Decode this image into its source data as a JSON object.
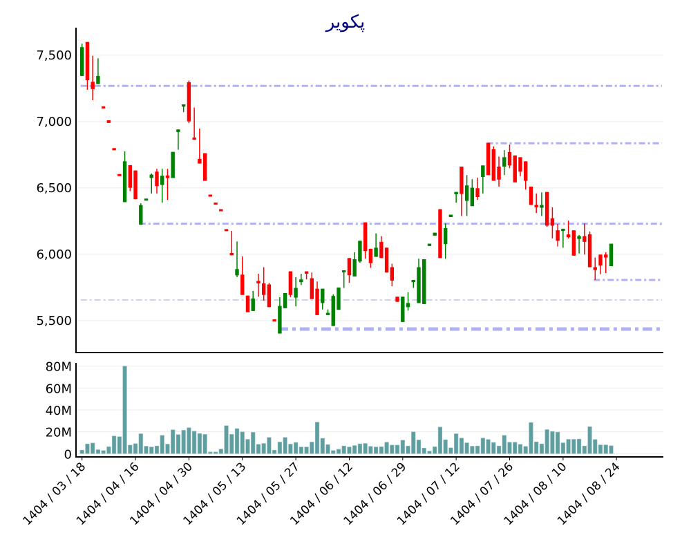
{
  "chart_data": [
    {
      "type": "candlestick",
      "title": "پکویر",
      "ylim": [
        5260,
        7708
      ],
      "y_ticks": [
        5500,
        6000,
        6500,
        7000,
        7500
      ],
      "y_tick_labels": [
        "5,500",
        "6,000",
        "6,500",
        "7,000",
        "7,500"
      ],
      "grid": true,
      "colors": {
        "up": "#008000",
        "down": "#ff0000",
        "level": "#b0b0f5",
        "grid": "#ebebeb",
        "title": "#000080"
      },
      "ohlc": [
        [
          7344,
          7587,
          7344,
          7561
        ],
        [
          7600,
          7600,
          7240,
          7312
        ],
        [
          7300,
          7496,
          7161,
          7245
        ],
        [
          7283,
          7477,
          7283,
          7344
        ],
        [
          7115,
          7115,
          7100,
          7100
        ],
        [
          7010,
          7010,
          6990,
          6990
        ],
        [
          6800,
          6800,
          6785,
          6785
        ],
        [
          6605,
          6605,
          6590,
          6590
        ],
        [
          6393,
          6776,
          6393,
          6701
        ],
        [
          6672,
          6672,
          6476,
          6502
        ],
        [
          6632,
          6632,
          6415,
          6415
        ],
        [
          6224,
          6384,
          6224,
          6371
        ],
        [
          6405,
          6420,
          6405,
          6420
        ],
        [
          6575,
          6609,
          6458,
          6601
        ],
        [
          6623,
          6644,
          6458,
          6514
        ],
        [
          6523,
          6644,
          6389,
          6592
        ],
        [
          6594,
          6644,
          6410,
          6575
        ],
        [
          6575,
          6772,
          6575,
          6772
        ],
        [
          6922,
          6941,
          6788,
          6941
        ],
        [
          7113,
          7130,
          7071,
          7130
        ],
        [
          7297,
          7309,
          6988,
          7002
        ],
        [
          6880,
          7106,
          6863,
          6863
        ],
        [
          6719,
          6948,
          6684,
          6684
        ],
        [
          6762,
          6762,
          6554,
          6554
        ],
        [
          6450,
          6450,
          6440,
          6440
        ],
        [
          6390,
          6390,
          6380,
          6380
        ],
        [
          6340,
          6340,
          6328,
          6328
        ],
        [
          6190,
          6190,
          6178,
          6178
        ],
        [
          6010,
          6177,
          5993,
          5993
        ],
        [
          5842,
          6097,
          5828,
          5889
        ],
        [
          5847,
          5984,
          5694,
          5694
        ],
        [
          5689,
          5689,
          5564,
          5564
        ],
        [
          5573,
          5724,
          5573,
          5668
        ],
        [
          5799,
          5854,
          5681,
          5781
        ],
        [
          5781,
          5903,
          5651,
          5694
        ],
        [
          5773,
          5785,
          5602,
          5602
        ],
        [
          5510,
          5510,
          5495,
          5495
        ],
        [
          5403,
          5677,
          5403,
          5611
        ],
        [
          5594,
          5708,
          5594,
          5708
        ],
        [
          5872,
          5872,
          5677,
          5694
        ],
        [
          5674,
          5828,
          5608,
          5747
        ],
        [
          5790,
          5854,
          5768,
          5811
        ],
        [
          5872,
          5872,
          5811,
          5854
        ],
        [
          5820,
          5863,
          5663,
          5663
        ],
        [
          5741,
          5795,
          5542,
          5542
        ],
        [
          5633,
          5741,
          5585,
          5741
        ],
        [
          5542,
          5585,
          5542,
          5559
        ],
        [
          5460,
          5698,
          5460,
          5686
        ],
        [
          5582,
          5750,
          5582,
          5750
        ],
        [
          5868,
          5880,
          5747,
          5880
        ],
        [
          5972,
          5972,
          5785,
          5842
        ],
        [
          5833,
          6016,
          5833,
          5963
        ],
        [
          5946,
          6102,
          5937,
          6102
        ],
        [
          6241,
          6241,
          5967,
          6025
        ],
        [
          6042,
          6042,
          5898,
          5934
        ],
        [
          5981,
          6158,
          5981,
          6050
        ],
        [
          6094,
          6137,
          5972,
          5972
        ],
        [
          6050,
          6050,
          5863,
          5863
        ],
        [
          5903,
          5929,
          5759,
          5802
        ],
        [
          5681,
          5681,
          5642,
          5642
        ],
        [
          5490,
          5681,
          5490,
          5681
        ],
        [
          5602,
          5715,
          5576,
          5633
        ],
        [
          5790,
          5807,
          5747,
          5807
        ],
        [
          5633,
          5967,
          5633,
          5903
        ],
        [
          5625,
          5963,
          5625,
          5963
        ],
        [
          6063,
          6080,
          6063,
          6080
        ],
        [
          6141,
          6163,
          6141,
          6163
        ],
        [
          6340,
          6340,
          5972,
          5972
        ],
        [
          6077,
          6233,
          5967,
          6198
        ],
        [
          6281,
          6299,
          6281,
          6299
        ],
        [
          6453,
          6470,
          6389,
          6470
        ],
        [
          6661,
          6661,
          6289,
          6455
        ],
        [
          6403,
          6597,
          6289,
          6519
        ],
        [
          6363,
          6566,
          6363,
          6502
        ],
        [
          6498,
          6577,
          6410,
          6432
        ],
        [
          6583,
          6670,
          6458,
          6670
        ],
        [
          6840,
          6840,
          6597,
          6597
        ],
        [
          6792,
          6814,
          6554,
          6554
        ],
        [
          6661,
          6736,
          6510,
          6563
        ],
        [
          6661,
          6785,
          6597,
          6732
        ],
        [
          6771,
          6827,
          6649,
          6670
        ],
        [
          6745,
          6745,
          6542,
          6542
        ],
        [
          6732,
          6732,
          6589,
          6623
        ],
        [
          6701,
          6701,
          6488,
          6554
        ],
        [
          6510,
          6510,
          6372,
          6372
        ],
        [
          6372,
          6458,
          6311,
          6354
        ],
        [
          6351,
          6467,
          6289,
          6372
        ],
        [
          6470,
          6470,
          6207,
          6216
        ],
        [
          6271,
          6354,
          6120,
          6216
        ],
        [
          6181,
          6229,
          6059,
          6102
        ],
        [
          6176,
          6193,
          6050,
          6193
        ],
        [
          6150,
          6254,
          6120,
          6129
        ],
        [
          6181,
          6181,
          5990,
          5990
        ],
        [
          6116,
          6146,
          6007,
          6137
        ],
        [
          6137,
          6233,
          5998,
          6094
        ],
        [
          6151,
          6172,
          5903,
          5903
        ],
        [
          5903,
          5976,
          5807,
          5882
        ],
        [
          5998,
          5998,
          5851,
          5915
        ],
        [
          5998,
          6016,
          5859,
          5976
        ],
        [
          5911,
          6080,
          5911,
          6080
        ]
      ],
      "levels": [
        {
          "value": 7269,
          "from_candle": 0,
          "style": "normal"
        },
        {
          "value": 6837,
          "from_candle": 76,
          "style": "normal"
        },
        {
          "value": 6231,
          "from_candle": 11,
          "style": "normal"
        },
        {
          "value": 5807,
          "from_candle": 96,
          "style": "normal"
        },
        {
          "value": 5656,
          "from_candle": 0,
          "style": "thin"
        },
        {
          "value": 5437,
          "from_candle": 37,
          "style": "bold"
        }
      ]
    },
    {
      "type": "bar",
      "ylabel": "",
      "ylim": [
        -3,
        83
      ],
      "unit": "M",
      "y_ticks": [
        0,
        20,
        40,
        60,
        80
      ],
      "y_tick_labels": [
        "0",
        "20M",
        "40M",
        "60M",
        "80M"
      ],
      "grid": true,
      "colors": {
        "bar": "#5f9ea0"
      },
      "values": [
        3.2,
        8.9,
        9.7,
        3.6,
        2.8,
        6.3,
        16.1,
        15.5,
        80,
        7.8,
        9.1,
        18.2,
        6.8,
        6.1,
        7,
        16.7,
        8.7,
        21.8,
        17.4,
        21.4,
        23.7,
        20.5,
        18.4,
        17.6,
        1.5,
        1.5,
        4.2,
        25.6,
        17.6,
        22.9,
        19.9,
        13.1,
        19.5,
        8.5,
        9.3,
        14.8,
        3.2,
        10.6,
        14.8,
        8.7,
        10.2,
        6.1,
        6.1,
        10.6,
        28.8,
        14,
        8.3,
        2.8,
        4,
        7,
        6.1,
        7.4,
        8.9,
        9.3,
        6.6,
        6.1,
        6.3,
        10.4,
        7.8,
        7.8,
        12.3,
        7,
        19.9,
        12.5,
        5.1,
        2.3,
        6.3,
        24.3,
        12.7,
        5.3,
        18.2,
        14.2,
        9.9,
        6.8,
        7,
        14.2,
        12.9,
        10.2,
        7,
        16.7,
        10.4,
        10.4,
        8.5,
        6.6,
        28.4,
        10.8,
        8.9,
        22,
        20.3,
        19.7,
        9.9,
        13.1,
        13.1,
        13.3,
        7,
        24.6,
        12.9,
        8,
        8,
        7.2
      ],
      "x_tick_labels": [
        "1404 / 03 / 18",
        "1404 / 04 / 16",
        "1404 / 04 / 30",
        "1404 / 05 / 13",
        "1404 / 05 / 27",
        "1404 / 06 / 12",
        "1404 / 06 / 29",
        "1404 / 07 / 12",
        "1404 / 07 / 26",
        "1404 / 08 / 10",
        "1404 / 08 / 24"
      ]
    }
  ]
}
